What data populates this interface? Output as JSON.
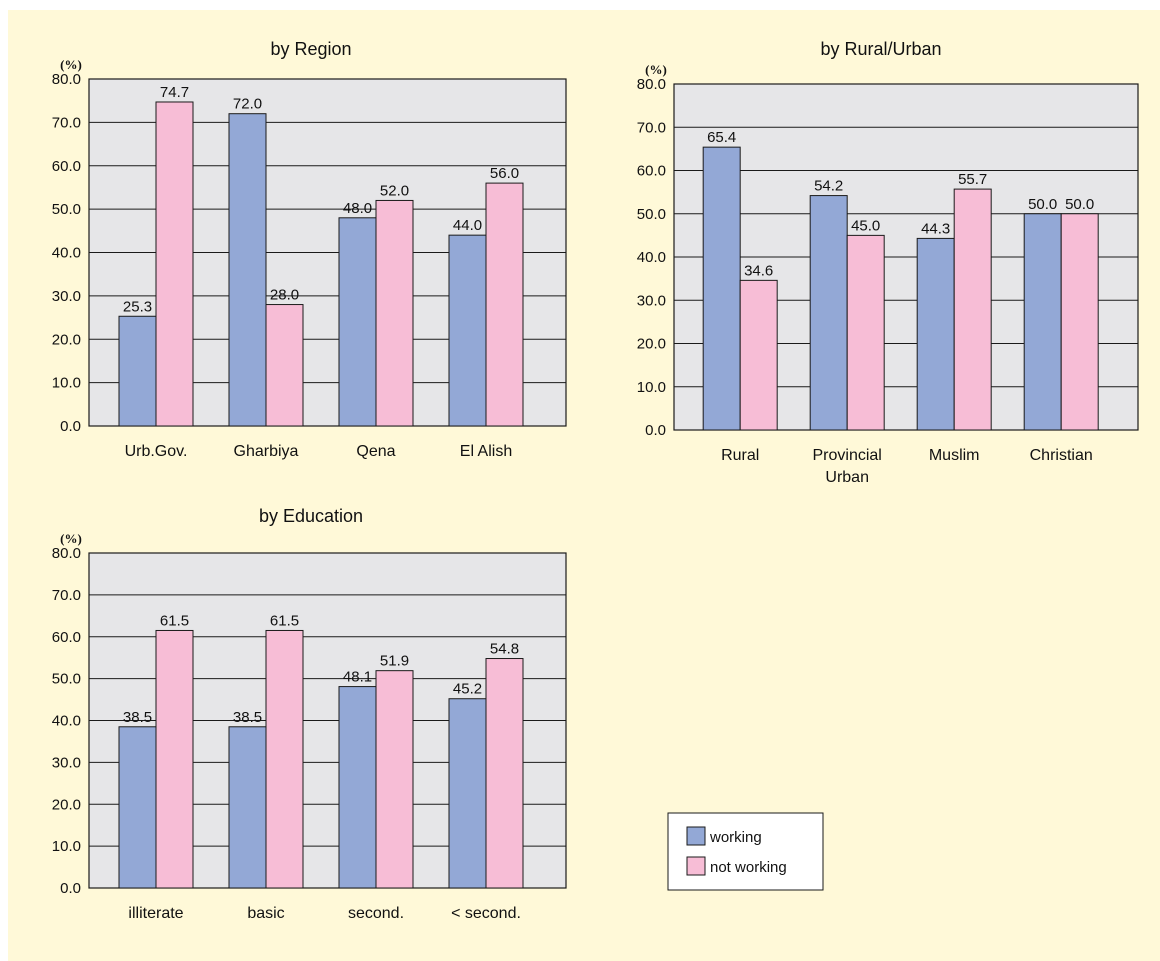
{
  "colors": {
    "working": "#93a8d6",
    "not_working": "#f7bdd6",
    "plot_bg": "#e6e6e8",
    "page_bg": "#fff9d8"
  },
  "legend": {
    "items": [
      "working",
      "not working"
    ]
  },
  "chart_data": [
    {
      "type": "bar",
      "title": "by Region",
      "ylabel": "(%)",
      "ylim": [
        0,
        80
      ],
      "yticks": [
        "0.0",
        "10.0",
        "20.0",
        "30.0",
        "40.0",
        "50.0",
        "60.0",
        "70.0",
        "80.0"
      ],
      "categories": [
        [
          "Urb.Gov."
        ],
        [
          "Gharbiya"
        ],
        [
          "Qena"
        ],
        [
          "El Alish"
        ]
      ],
      "series": [
        {
          "name": "working",
          "values": [
            25.3,
            72.0,
            48.0,
            44.0
          ],
          "labels": [
            "25.3",
            "72.0",
            "48.0",
            "44.0"
          ]
        },
        {
          "name": "not working",
          "values": [
            74.7,
            28.0,
            52.0,
            56.0
          ],
          "labels": [
            "74.7",
            "28.0",
            "52.0",
            "56.0"
          ]
        }
      ],
      "grid": true
    },
    {
      "type": "bar",
      "title": "by Rural/Urban",
      "ylabel": "(%)",
      "ylim": [
        0,
        80
      ],
      "yticks": [
        "0.0",
        "10.0",
        "20.0",
        "30.0",
        "40.0",
        "50.0",
        "60.0",
        "70.0",
        "80.0"
      ],
      "categories": [
        [
          "Rural"
        ],
        [
          "Provincial",
          "Urban"
        ],
        [
          "Muslim"
        ],
        [
          "Christian"
        ]
      ],
      "series": [
        {
          "name": "working",
          "values": [
            65.4,
            54.2,
            44.3,
            50.0
          ],
          "labels": [
            "65.4",
            "54.2",
            "44.3",
            "50.0"
          ]
        },
        {
          "name": "not working",
          "values": [
            34.6,
            45.0,
            55.7,
            50.0
          ],
          "labels": [
            "34.6",
            "45.0",
            "55.7",
            "50.0"
          ]
        }
      ],
      "grid": true
    },
    {
      "type": "bar",
      "title": "by Education",
      "ylabel": "(%)",
      "ylim": [
        0,
        80
      ],
      "yticks": [
        "0.0",
        "10.0",
        "20.0",
        "30.0",
        "40.0",
        "50.0",
        "60.0",
        "70.0",
        "80.0"
      ],
      "categories": [
        [
          "illiterate"
        ],
        [
          "basic"
        ],
        [
          "second."
        ],
        [
          "< second."
        ]
      ],
      "series": [
        {
          "name": "working",
          "values": [
            38.5,
            38.5,
            48.1,
            45.2
          ],
          "labels": [
            "38.5",
            "38.5",
            "48.1",
            "45.2"
          ]
        },
        {
          "name": "not working",
          "values": [
            61.5,
            61.5,
            51.9,
            54.8
          ],
          "labels": [
            "61.5",
            "61.5",
            "51.9",
            "54.8"
          ]
        }
      ],
      "grid": true
    }
  ]
}
